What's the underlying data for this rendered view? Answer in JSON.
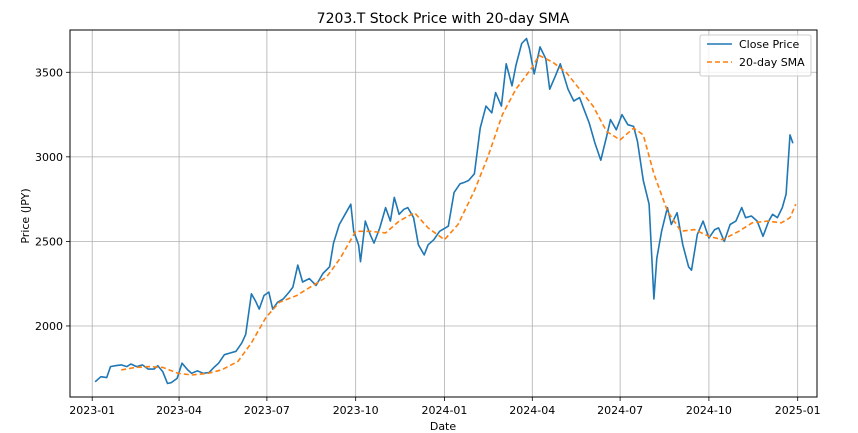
{
  "chart_data": {
    "type": "line",
    "title": "7203.T Stock Price with 20-day SMA",
    "xlabel": "Date",
    "ylabel": "Price (JPY)",
    "xlim": [
      "2022-12-09",
      "2025-01-21"
    ],
    "ylim": [
      1580,
      3750
    ],
    "x_ticks": [
      {
        "date": "2023-01-01",
        "label": "2023-01"
      },
      {
        "date": "2023-04-01",
        "label": "2023-04"
      },
      {
        "date": "2023-07-01",
        "label": "2023-07"
      },
      {
        "date": "2023-10-01",
        "label": "2023-10"
      },
      {
        "date": "2024-01-01",
        "label": "2024-01"
      },
      {
        "date": "2024-04-01",
        "label": "2024-04"
      },
      {
        "date": "2024-07-01",
        "label": "2024-07"
      },
      {
        "date": "2024-10-01",
        "label": "2024-10"
      },
      {
        "date": "2025-01-01",
        "label": "2025-01"
      }
    ],
    "y_ticks": [
      2000,
      2500,
      3000,
      3500
    ],
    "grid": true,
    "legend": "top-right",
    "series": [
      {
        "name": "Close Price",
        "color": "#1f77b4",
        "style": "solid",
        "points": [
          [
            "2023-01-04",
            1670
          ],
          [
            "2023-01-10",
            1700
          ],
          [
            "2023-01-16",
            1695
          ],
          [
            "2023-01-20",
            1760
          ],
          [
            "2023-01-25",
            1765
          ],
          [
            "2023-01-31",
            1770
          ],
          [
            "2023-02-06",
            1760
          ],
          [
            "2023-02-10",
            1775
          ],
          [
            "2023-02-16",
            1760
          ],
          [
            "2023-02-22",
            1770
          ],
          [
            "2023-02-28",
            1745
          ],
          [
            "2023-03-06",
            1745
          ],
          [
            "2023-03-10",
            1765
          ],
          [
            "2023-03-15",
            1730
          ],
          [
            "2023-03-20",
            1660
          ],
          [
            "2023-03-24",
            1665
          ],
          [
            "2023-03-30",
            1690
          ],
          [
            "2023-04-04",
            1780
          ],
          [
            "2023-04-10",
            1740
          ],
          [
            "2023-04-14",
            1720
          ],
          [
            "2023-04-20",
            1735
          ],
          [
            "2023-04-26",
            1720
          ],
          [
            "2023-05-02",
            1725
          ],
          [
            "2023-05-08",
            1760
          ],
          [
            "2023-05-12",
            1780
          ],
          [
            "2023-05-18",
            1830
          ],
          [
            "2023-05-24",
            1840
          ],
          [
            "2023-05-30",
            1850
          ],
          [
            "2023-06-05",
            1900
          ],
          [
            "2023-06-09",
            1950
          ],
          [
            "2023-06-15",
            2190
          ],
          [
            "2023-06-19",
            2150
          ],
          [
            "2023-06-23",
            2100
          ],
          [
            "2023-06-28",
            2180
          ],
          [
            "2023-07-03",
            2200
          ],
          [
            "2023-07-07",
            2100
          ],
          [
            "2023-07-12",
            2140
          ],
          [
            "2023-07-18",
            2160
          ],
          [
            "2023-07-24",
            2200
          ],
          [
            "2023-07-28",
            2230
          ],
          [
            "2023-08-02",
            2360
          ],
          [
            "2023-08-07",
            2260
          ],
          [
            "2023-08-14",
            2280
          ],
          [
            "2023-08-21",
            2240
          ],
          [
            "2023-08-28",
            2310
          ],
          [
            "2023-09-04",
            2350
          ],
          [
            "2023-09-08",
            2490
          ],
          [
            "2023-09-14",
            2600
          ],
          [
            "2023-09-20",
            2660
          ],
          [
            "2023-09-26",
            2720
          ],
          [
            "2023-09-29",
            2560
          ],
          [
            "2023-10-04",
            2480
          ],
          [
            "2023-10-06",
            2380
          ],
          [
            "2023-10-11",
            2620
          ],
          [
            "2023-10-16",
            2540
          ],
          [
            "2023-10-20",
            2490
          ],
          [
            "2023-10-26",
            2580
          ],
          [
            "2023-11-01",
            2700
          ],
          [
            "2023-11-06",
            2620
          ],
          [
            "2023-11-10",
            2760
          ],
          [
            "2023-11-15",
            2660
          ],
          [
            "2023-11-20",
            2690
          ],
          [
            "2023-11-24",
            2700
          ],
          [
            "2023-11-30",
            2640
          ],
          [
            "2023-12-05",
            2480
          ],
          [
            "2023-12-11",
            2420
          ],
          [
            "2023-12-15",
            2480
          ],
          [
            "2023-12-21",
            2510
          ],
          [
            "2023-12-27",
            2560
          ],
          [
            "2024-01-05",
            2590
          ],
          [
            "2024-01-11",
            2790
          ],
          [
            "2024-01-17",
            2840
          ],
          [
            "2024-01-22",
            2850
          ],
          [
            "2024-01-26",
            2860
          ],
          [
            "2024-02-01",
            2900
          ],
          [
            "2024-02-07",
            3170
          ],
          [
            "2024-02-13",
            3300
          ],
          [
            "2024-02-19",
            3260
          ],
          [
            "2024-02-23",
            3380
          ],
          [
            "2024-02-29",
            3300
          ],
          [
            "2024-03-05",
            3550
          ],
          [
            "2024-03-11",
            3420
          ],
          [
            "2024-03-15",
            3540
          ],
          [
            "2024-03-21",
            3670
          ],
          [
            "2024-03-26",
            3700
          ],
          [
            "2024-03-29",
            3640
          ],
          [
            "2024-04-03",
            3490
          ],
          [
            "2024-04-09",
            3650
          ],
          [
            "2024-04-15",
            3580
          ],
          [
            "2024-04-19",
            3400
          ],
          [
            "2024-04-25",
            3480
          ],
          [
            "2024-04-30",
            3550
          ],
          [
            "2024-05-08",
            3400
          ],
          [
            "2024-05-14",
            3330
          ],
          [
            "2024-05-20",
            3350
          ],
          [
            "2024-05-24",
            3290
          ],
          [
            "2024-05-30",
            3200
          ],
          [
            "2024-06-05",
            3080
          ],
          [
            "2024-06-11",
            2980
          ],
          [
            "2024-06-17",
            3120
          ],
          [
            "2024-06-21",
            3220
          ],
          [
            "2024-06-27",
            3160
          ],
          [
            "2024-07-03",
            3250
          ],
          [
            "2024-07-09",
            3190
          ],
          [
            "2024-07-15",
            3180
          ],
          [
            "2024-07-19",
            3090
          ],
          [
            "2024-07-25",
            2860
          ],
          [
            "2024-07-31",
            2720
          ],
          [
            "2024-08-05",
            2160
          ],
          [
            "2024-08-08",
            2400
          ],
          [
            "2024-08-13",
            2560
          ],
          [
            "2024-08-19",
            2700
          ],
          [
            "2024-08-23",
            2600
          ],
          [
            "2024-08-29",
            2670
          ],
          [
            "2024-09-04",
            2480
          ],
          [
            "2024-09-10",
            2350
          ],
          [
            "2024-09-13",
            2330
          ],
          [
            "2024-09-19",
            2540
          ],
          [
            "2024-09-25",
            2620
          ],
          [
            "2024-10-01",
            2520
          ],
          [
            "2024-10-07",
            2570
          ],
          [
            "2024-10-11",
            2580
          ],
          [
            "2024-10-17",
            2500
          ],
          [
            "2024-10-23",
            2600
          ],
          [
            "2024-10-29",
            2620
          ],
          [
            "2024-11-04",
            2700
          ],
          [
            "2024-11-08",
            2640
          ],
          [
            "2024-11-14",
            2650
          ],
          [
            "2024-11-20",
            2620
          ],
          [
            "2024-11-26",
            2530
          ],
          [
            "2024-12-02",
            2620
          ],
          [
            "2024-12-06",
            2660
          ],
          [
            "2024-12-11",
            2640
          ],
          [
            "2024-12-16",
            2700
          ],
          [
            "2024-12-20",
            2780
          ],
          [
            "2024-12-24",
            3130
          ],
          [
            "2024-12-27",
            3080
          ]
        ]
      },
      {
        "name": "20-day SMA",
        "color": "#ff7f0e",
        "style": "dashed",
        "points": [
          [
            "2023-01-31",
            1740
          ],
          [
            "2023-02-15",
            1755
          ],
          [
            "2023-03-01",
            1760
          ],
          [
            "2023-03-15",
            1755
          ],
          [
            "2023-03-31",
            1720
          ],
          [
            "2023-04-14",
            1710
          ],
          [
            "2023-05-01",
            1720
          ],
          [
            "2023-05-15",
            1740
          ],
          [
            "2023-06-01",
            1790
          ],
          [
            "2023-06-15",
            1900
          ],
          [
            "2023-06-30",
            2050
          ],
          [
            "2023-07-14",
            2140
          ],
          [
            "2023-08-01",
            2180
          ],
          [
            "2023-08-15",
            2230
          ],
          [
            "2023-09-01",
            2290
          ],
          [
            "2023-09-15",
            2400
          ],
          [
            "2023-10-01",
            2560
          ],
          [
            "2023-10-16",
            2560
          ],
          [
            "2023-11-01",
            2550
          ],
          [
            "2023-11-15",
            2620
          ],
          [
            "2023-12-01",
            2670
          ],
          [
            "2023-12-15",
            2580
          ],
          [
            "2024-01-01",
            2510
          ],
          [
            "2024-01-15",
            2600
          ],
          [
            "2024-02-01",
            2800
          ],
          [
            "2024-02-15",
            3000
          ],
          [
            "2024-03-01",
            3250
          ],
          [
            "2024-03-15",
            3400
          ],
          [
            "2024-04-01",
            3530
          ],
          [
            "2024-04-08",
            3600
          ],
          [
            "2024-04-22",
            3560
          ],
          [
            "2024-05-06",
            3500
          ],
          [
            "2024-05-20",
            3400
          ],
          [
            "2024-06-03",
            3300
          ],
          [
            "2024-06-17",
            3150
          ],
          [
            "2024-07-01",
            3100
          ],
          [
            "2024-07-15",
            3170
          ],
          [
            "2024-07-25",
            3130
          ],
          [
            "2024-08-05",
            2900
          ],
          [
            "2024-08-19",
            2680
          ],
          [
            "2024-09-02",
            2560
          ],
          [
            "2024-09-16",
            2570
          ],
          [
            "2024-10-01",
            2530
          ],
          [
            "2024-10-15",
            2510
          ],
          [
            "2024-11-01",
            2560
          ],
          [
            "2024-11-15",
            2610
          ],
          [
            "2024-12-01",
            2620
          ],
          [
            "2024-12-15",
            2610
          ],
          [
            "2024-12-24",
            2640
          ],
          [
            "2024-12-30",
            2720
          ]
        ]
      }
    ]
  }
}
